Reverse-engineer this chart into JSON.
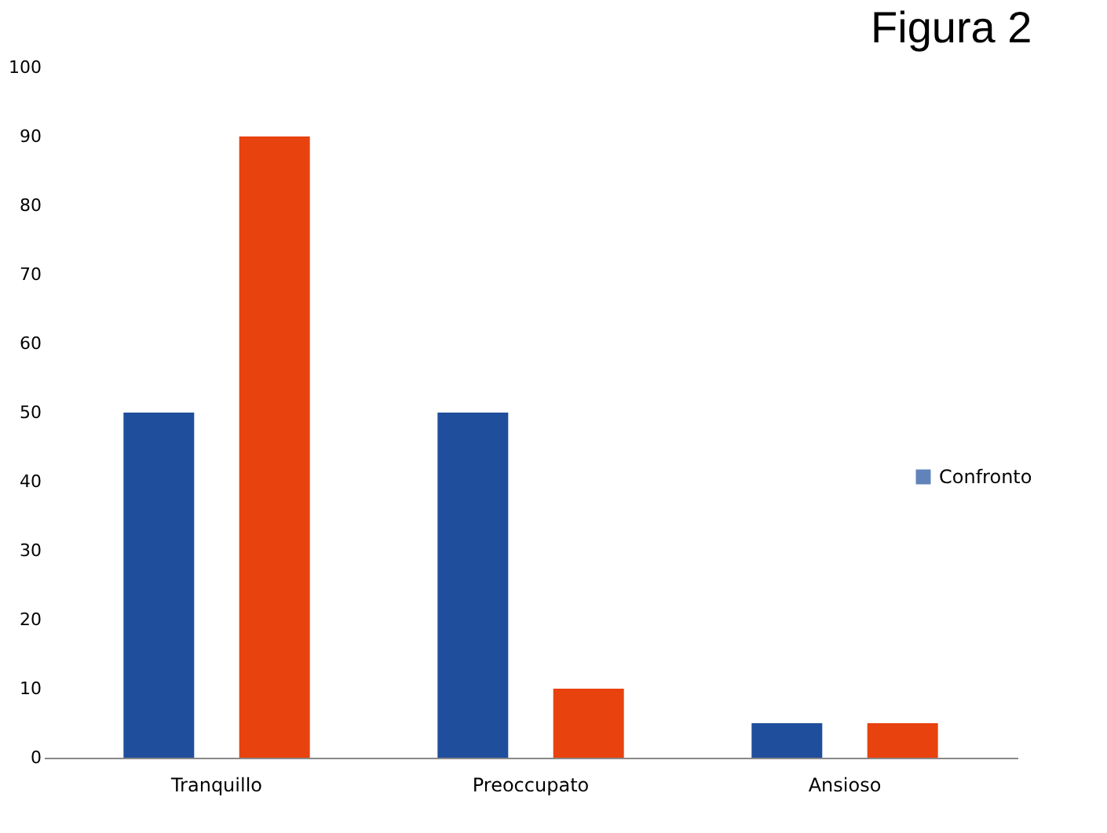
{
  "chart_data": {
    "type": "bar",
    "title": "Figura 2",
    "categories": [
      "Tranquillo",
      "Preoccupato",
      "Ansioso"
    ],
    "series": [
      {
        "name": "Confronto",
        "color": "#1f4e9c",
        "values": [
          50,
          50,
          5
        ]
      },
      {
        "color": "#e8420f",
        "values": [
          90,
          10,
          5
        ]
      }
    ],
    "ylim": [
      0,
      100
    ],
    "yticks": [
      0,
      10,
      20,
      30,
      40,
      50,
      60,
      70,
      80,
      90,
      100
    ],
    "grid": false,
    "legend": "right"
  }
}
